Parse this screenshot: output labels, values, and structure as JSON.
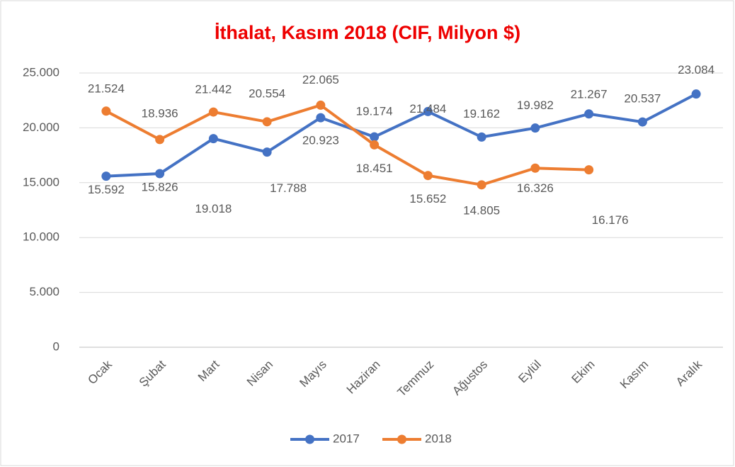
{
  "chart_data": {
    "type": "line",
    "title": "İthalat, Kasım 2018 (CIF, Milyon $)",
    "categories": [
      "Ocak",
      "Şubat",
      "Mart",
      "Nisan",
      "Mayıs",
      "Haziran",
      "Temmuz",
      "Ağustos",
      "Eylül",
      "Ekim",
      "Kasım",
      "Aralık"
    ],
    "series": [
      {
        "name": "2017",
        "color": "#4472c4",
        "values": [
          15592,
          15826,
          19018,
          17788,
          20923,
          19174,
          21484,
          19162,
          19982,
          21267,
          20537,
          23084
        ],
        "value_labels": [
          "15.592",
          "15.826",
          "19.018",
          "17.788",
          "20.923",
          "19.174",
          "21.484",
          "19.162",
          "19.982",
          "21.267",
          "20.537",
          "23.084"
        ]
      },
      {
        "name": "2018",
        "color": "#ed7d31",
        "values": [
          21524,
          18936,
          21442,
          20554,
          22065,
          18451,
          15652,
          14805,
          16326,
          16176,
          null,
          null
        ],
        "value_labels": [
          "21.524",
          "18.936",
          "21.442",
          "20.554",
          "22.065",
          "18.451",
          "15.652",
          "14.805",
          "16.326",
          "16.176",
          null,
          null
        ]
      }
    ],
    "ylim": [
      0,
      25000
    ],
    "yticks": [
      0,
      {
        "value": 5000,
        "label": "5.000"
      },
      {
        "value": 10000,
        "label": "10.000"
      },
      {
        "value": 15000,
        "label": "15.000"
      },
      {
        "value": 20000,
        "label": "20.000"
      },
      {
        "value": 25000,
        "label": "25.000"
      }
    ],
    "grid": true,
    "legend": "bottom"
  }
}
